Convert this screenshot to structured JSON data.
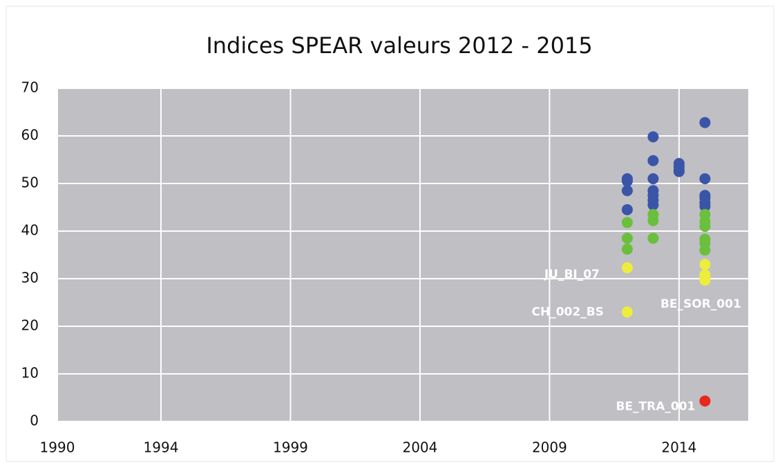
{
  "chart_data": {
    "type": "scatter",
    "title": "Indices SPEAR valeurs 2012 - 2015",
    "xlim": [
      1990,
      2016.67
    ],
    "xticks": [
      1990,
      1994,
      1999,
      2004,
      2009,
      2014
    ],
    "ylim": [
      0,
      70
    ],
    "yticks": [
      0,
      10,
      20,
      30,
      40,
      50,
      60,
      70
    ],
    "grid": true,
    "series": [
      {
        "color": "#3a55a8",
        "x": [
          2012,
          2012,
          2012,
          2012,
          2013,
          2013,
          2013,
          2013,
          2013,
          2013,
          2013,
          2014,
          2014,
          2014,
          2014,
          2015,
          2015,
          2015,
          2015,
          2015,
          2015
        ],
        "values": [
          51,
          50.5,
          48.5,
          44.5,
          59.8,
          54.8,
          51,
          48.5,
          47.5,
          46.5,
          45.5,
          54.2,
          53.5,
          52.8,
          52.5,
          62.8,
          51,
          47.5,
          47,
          46,
          45.2
        ]
      },
      {
        "color": "#6abf3c",
        "x": [
          2012,
          2012,
          2012,
          2013,
          2013,
          2013,
          2015,
          2015,
          2015,
          2015,
          2015,
          2015
        ],
        "values": [
          41.8,
          38.5,
          36.2,
          43.5,
          42.2,
          38.5,
          43.5,
          42,
          41,
          38.3,
          37.5,
          36
        ]
      },
      {
        "color": "#eded3c",
        "x": [
          2012,
          2012,
          2015,
          2015,
          2015,
          2015
        ],
        "values": [
          32.3,
          23,
          33,
          30.8,
          30.2,
          29.7
        ]
      },
      {
        "color": "#e8281e",
        "x": [
          2015
        ],
        "values": [
          4.3
        ]
      }
    ],
    "annotations": [
      {
        "text": "JU_BI_07",
        "x": 2012,
        "y": 32.3
      },
      {
        "text": "CH_002_BS",
        "x": 2012,
        "y": 23
      },
      {
        "text": "BE_SOR_001",
        "x": 2015,
        "y": 29.7
      },
      {
        "text": "BE_TRA_001",
        "x": 2015,
        "y": 4.3
      }
    ]
  }
}
